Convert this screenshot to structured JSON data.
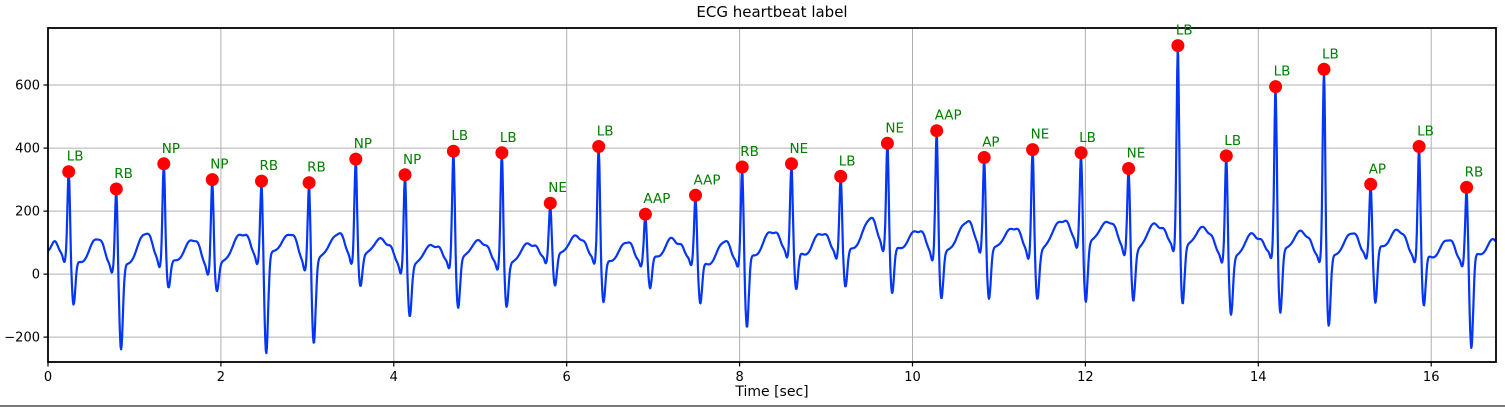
{
  "figure": {
    "background": "#ffffff",
    "divider_color": "#7a7a7a"
  },
  "chart_data": {
    "type": "line",
    "title": "ECG heartbeat label",
    "xlabel": "Time [sec]",
    "ylabel": "",
    "xlim": [
      0,
      16.75
    ],
    "ylim": [
      -279,
      781
    ],
    "xticks": [
      0,
      2,
      4,
      6,
      8,
      10,
      12,
      14,
      16
    ],
    "yticks": [
      -200,
      0,
      200,
      400,
      600
    ],
    "grid": true,
    "legend": "none",
    "colors": {
      "line": "#0535f5",
      "marker": "#ff0000",
      "annotation": "#008000",
      "grid": "#b0b0b0",
      "axis": "#000000",
      "tick_text": "#000000"
    },
    "beat_classes": [
      "LB",
      "RB",
      "NP",
      "NE",
      "AAP",
      "AP"
    ],
    "annotated_peaks": [
      {
        "t": 0.24,
        "v": 325,
        "label": "LB",
        "s_dip": -105
      },
      {
        "t": 0.79,
        "v": 270,
        "label": "RB",
        "s_dip": -225
      },
      {
        "t": 1.34,
        "v": 350,
        "label": "NP",
        "s_dip": -40
      },
      {
        "t": 1.9,
        "v": 300,
        "label": "NP",
        "s_dip": -35
      },
      {
        "t": 2.47,
        "v": 295,
        "label": "RB",
        "s_dip": -265
      },
      {
        "t": 3.02,
        "v": 290,
        "label": "RB",
        "s_dip": -210
      },
      {
        "t": 3.56,
        "v": 365,
        "label": "NP",
        "s_dip": -45
      },
      {
        "t": 4.13,
        "v": 315,
        "label": "NP",
        "s_dip": -110
      },
      {
        "t": 4.69,
        "v": 390,
        "label": "LB",
        "s_dip": -110
      },
      {
        "t": 5.25,
        "v": 385,
        "label": "LB",
        "s_dip": -95
      },
      {
        "t": 5.81,
        "v": 225,
        "label": "NE",
        "s_dip": -60
      },
      {
        "t": 6.37,
        "v": 405,
        "label": "LB",
        "s_dip": -95
      },
      {
        "t": 6.91,
        "v": 190,
        "label": "AAP",
        "s_dip": -60
      },
      {
        "t": 7.49,
        "v": 250,
        "label": "AAP",
        "s_dip": -90
      },
      {
        "t": 8.03,
        "v": 340,
        "label": "RB",
        "s_dip": -175
      },
      {
        "t": 8.6,
        "v": 350,
        "label": "NE",
        "s_dip": -60
      },
      {
        "t": 9.17,
        "v": 310,
        "label": "LB",
        "s_dip": -50
      },
      {
        "t": 9.71,
        "v": 415,
        "label": "NE",
        "s_dip": -70
      },
      {
        "t": 10.28,
        "v": 455,
        "label": "AAP",
        "s_dip": -60
      },
      {
        "t": 10.83,
        "v": 370,
        "label": "AP",
        "s_dip": -70
      },
      {
        "t": 11.39,
        "v": 395,
        "label": "NE",
        "s_dip": -55
      },
      {
        "t": 11.95,
        "v": 385,
        "label": "LB",
        "s_dip": -95
      },
      {
        "t": 12.5,
        "v": 335,
        "label": "NE",
        "s_dip": -70
      },
      {
        "t": 13.07,
        "v": 725,
        "label": "LB",
        "s_dip": -100
      },
      {
        "t": 13.63,
        "v": 375,
        "label": "LB",
        "s_dip": -105
      },
      {
        "t": 14.2,
        "v": 595,
        "label": "LB",
        "s_dip": -130
      },
      {
        "t": 14.76,
        "v": 650,
        "label": "LB",
        "s_dip": -160
      },
      {
        "t": 15.3,
        "v": 285,
        "label": "AP",
        "s_dip": -120
      },
      {
        "t": 15.86,
        "v": 405,
        "label": "LB",
        "s_dip": -110
      },
      {
        "t": 16.41,
        "v": 275,
        "label": "RB",
        "s_dip": -250
      }
    ]
  }
}
